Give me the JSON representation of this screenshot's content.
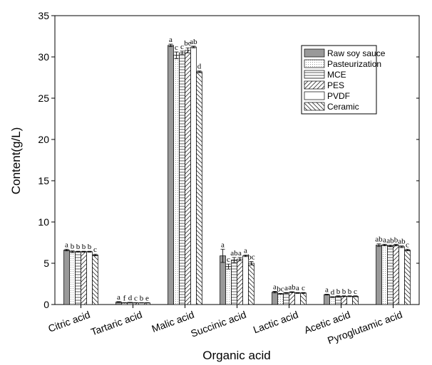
{
  "chart_data": {
    "type": "bar",
    "xlabel": "Organic acid",
    "ylabel": "Content(g/L)",
    "categories": [
      "Citric acid",
      "Tartaric acid",
      "Malic acid",
      "Succinic acid",
      "Lactic acid",
      "Acetic acid",
      "Pyroglutamic acid"
    ],
    "ylim": [
      0,
      35
    ],
    "yticks": [
      0,
      5,
      10,
      15,
      20,
      25,
      30,
      35
    ],
    "legend": "upper right",
    "series": [
      {
        "name": "Raw soy sauce",
        "color": "#999999",
        "pattern": "solid",
        "values": [
          6.6,
          0.3,
          31.4,
          5.9,
          1.5,
          1.2,
          7.2
        ],
        "errors": [
          0.1,
          0.05,
          0.15,
          0.8,
          0.1,
          0.05,
          0.15
        ],
        "letters": [
          "a",
          "a",
          "a",
          "a",
          "a",
          "a",
          "ab"
        ]
      },
      {
        "name": "Pasteurization",
        "color": "#999999",
        "pattern": "dots",
        "values": [
          6.4,
          0.2,
          30.2,
          4.6,
          1.3,
          0.9,
          7.2
        ],
        "errors": [
          0.1,
          0.02,
          0.4,
          0.3,
          0.05,
          0.05,
          0.1
        ],
        "letters": [
          "b",
          "f",
          "c",
          "c",
          "bc",
          "d",
          "a"
        ]
      },
      {
        "name": "MCE",
        "color": "#555555",
        "pattern": "horizontal",
        "values": [
          6.4,
          0.25,
          30.5,
          5.4,
          1.4,
          1.0,
          7.1
        ],
        "errors": [
          0.05,
          0.02,
          0.2,
          0.3,
          0.05,
          0.05,
          0.1
        ],
        "letters": [
          "b",
          "d",
          "c",
          "ab",
          "a",
          "b",
          "ab"
        ]
      },
      {
        "name": "PES",
        "color": "#555555",
        "pattern": "diagonal",
        "values": [
          6.4,
          0.2,
          30.8,
          5.5,
          1.5,
          1.0,
          7.2
        ],
        "errors": [
          0.05,
          0.02,
          0.3,
          0.2,
          0.05,
          0.05,
          0.1
        ],
        "letters": [
          "b",
          "c",
          "bc",
          "a",
          "ab",
          "b",
          "b"
        ]
      },
      {
        "name": "PVDF",
        "color": "#555555",
        "pattern": "none",
        "values": [
          6.4,
          0.2,
          31.2,
          5.9,
          1.4,
          1.0,
          7.0
        ],
        "errors": [
          0.05,
          0.02,
          0.1,
          0.1,
          0.05,
          0.05,
          0.1
        ],
        "letters": [
          "b",
          "b",
          "ab",
          "a",
          "a",
          "b",
          "ab"
        ]
      },
      {
        "name": "Ceramic",
        "color": "#555555",
        "pattern": "backdiagonal",
        "values": [
          6.0,
          0.2,
          28.2,
          5.0,
          1.4,
          1.0,
          6.6
        ],
        "errors": [
          0.1,
          0.02,
          0.1,
          0.2,
          0.05,
          0.05,
          0.1
        ],
        "letters": [
          "c",
          "e",
          "d",
          "bc",
          "c",
          "c",
          "c"
        ]
      }
    ]
  }
}
